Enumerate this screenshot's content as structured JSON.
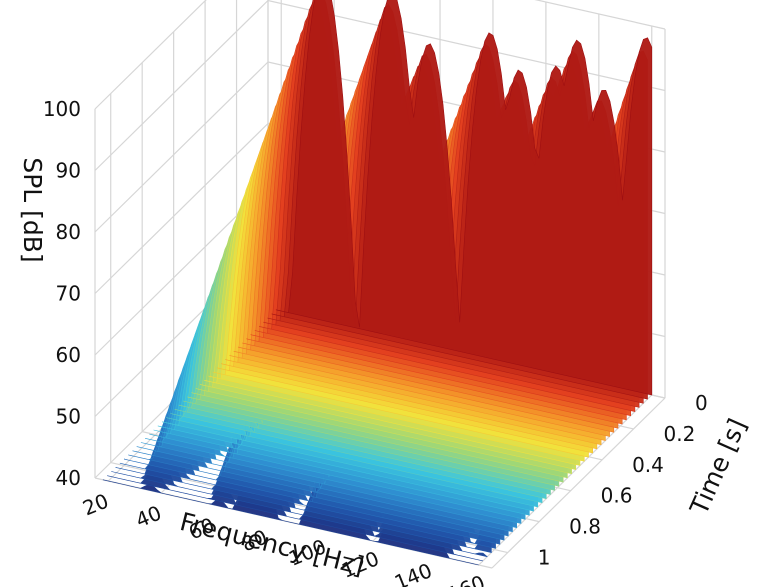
{
  "chart_data": {
    "type": "waterfall-3d",
    "title": "",
    "x_axis": {
      "label": "Frequency [Hz]",
      "range": [
        15,
        165
      ],
      "ticks": [
        "20",
        "40",
        "60",
        "80",
        "100",
        "120",
        "140",
        "160"
      ]
    },
    "y_axis": {
      "label": "Time [s]",
      "range": [
        0,
        1.1
      ],
      "ticks": [
        "0",
        "0.2",
        "0.4",
        "0.6",
        "0.8",
        "1"
      ]
    },
    "z_axis": {
      "label": "SPL [dB]",
      "range": [
        40,
        100
      ],
      "ticks": [
        "40",
        "50",
        "60",
        "70",
        "80",
        "90",
        "100"
      ]
    },
    "grid": true,
    "colormap": "jet",
    "color_stops": [
      "#1d2b7a",
      "#2158ad",
      "#2f8fd1",
      "#3cc6e0",
      "#9bd67a",
      "#f4e23b",
      "#f59a2a",
      "#e3411f",
      "#9e0f12"
    ],
    "modes": [
      {
        "freq": 36,
        "peak_db": 96,
        "decay_db_per_s": 50
      },
      {
        "freq": 62,
        "peak_db": 96,
        "decay_db_per_s": 50
      },
      {
        "freq": 76,
        "peak_db": 89,
        "decay_db_per_s": 38
      },
      {
        "freq": 99,
        "peak_db": 93,
        "decay_db_per_s": 44
      },
      {
        "freq": 110,
        "peak_db": 88,
        "decay_db_per_s": 38
      },
      {
        "freq": 124,
        "peak_db": 90,
        "decay_db_per_s": 45
      },
      {
        "freq": 132,
        "peak_db": 95,
        "decay_db_per_s": 42
      },
      {
        "freq": 142,
        "peak_db": 88,
        "decay_db_per_s": 40
      },
      {
        "freq": 158,
        "peak_db": 98,
        "decay_db_per_s": 55
      }
    ]
  }
}
